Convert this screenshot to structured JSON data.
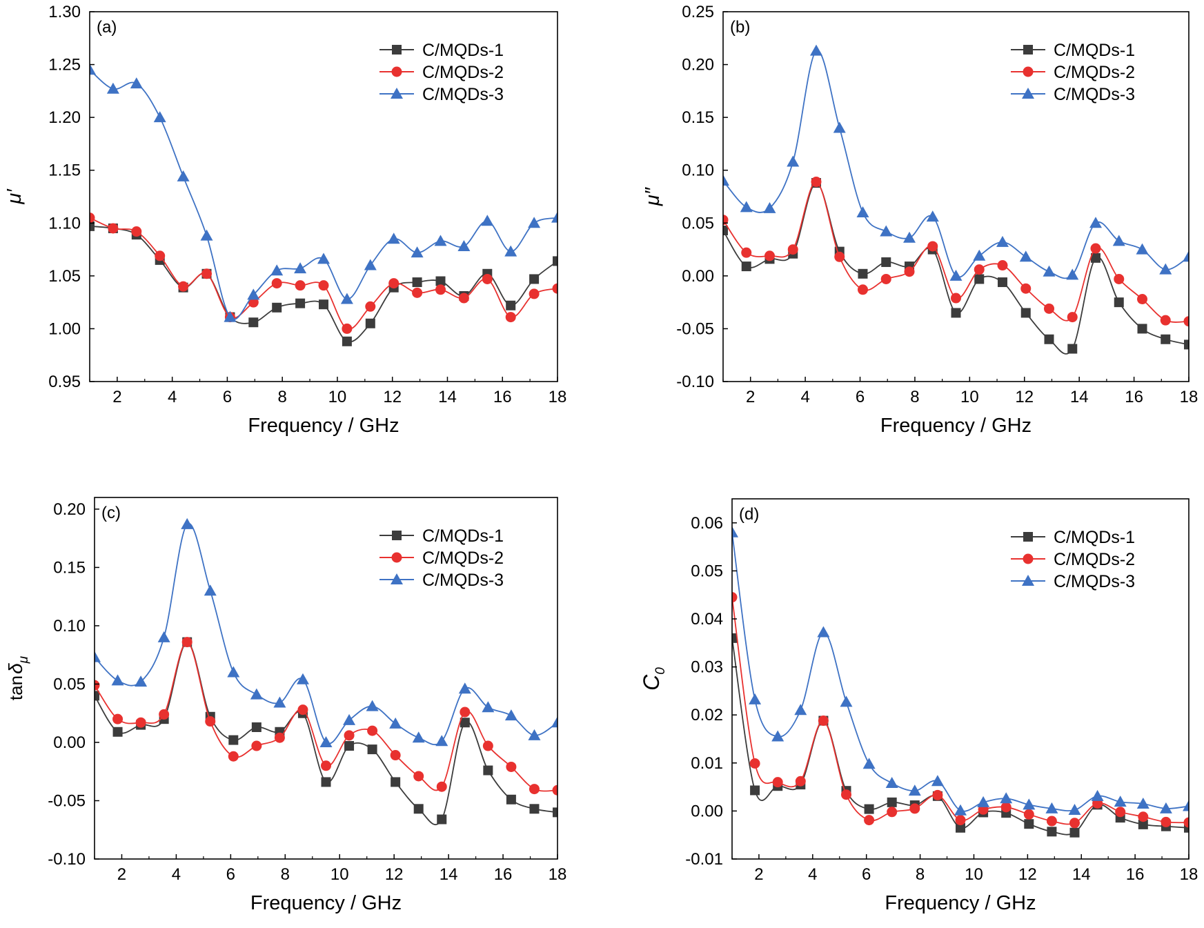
{
  "figure": {
    "legend_entries": [
      "C/MQDs-1",
      "C/MQDs-2",
      "C/MQDs-3"
    ],
    "series_colors": {
      "C/MQDs-1": "#3c3c3c",
      "C/MQDs-2": "#e8312f",
      "C/MQDs-3": "#3e72c4"
    },
    "marker_shapes": {
      "C/MQDs-1": "square",
      "C/MQDs-2": "circle",
      "C/MQDs-3": "triangle"
    }
  },
  "chart_data": [
    {
      "panel_label": "(a)",
      "type": "line",
      "xlabel": "Frequency / GHz",
      "ylabel": "μ′",
      "xlim": [
        1,
        18
      ],
      "ylim": [
        0.95,
        1.3
      ],
      "xticks": [
        "2",
        "4",
        "6",
        "8",
        "10",
        "12",
        "14",
        "16",
        "18"
      ],
      "yticks": [
        "0.95",
        "1.00",
        "1.05",
        "1.10",
        "1.15",
        "1.20",
        "1.25",
        "1.30"
      ],
      "legend_position": "top-right",
      "x": [
        1.0,
        1.85,
        2.7,
        3.55,
        4.4,
        5.25,
        6.1,
        6.95,
        7.8,
        8.65,
        9.5,
        10.35,
        11.2,
        12.05,
        12.9,
        13.75,
        14.6,
        15.45,
        16.3,
        17.15,
        18.0
      ],
      "series": [
        {
          "name": "C/MQDs-1",
          "values": [
            1.097,
            1.095,
            1.089,
            1.065,
            1.039,
            1.052,
            1.011,
            1.006,
            1.02,
            1.024,
            1.023,
            0.988,
            1.005,
            1.039,
            1.044,
            1.045,
            1.031,
            1.052,
            1.022,
            1.047,
            1.064
          ]
        },
        {
          "name": "C/MQDs-2",
          "values": [
            1.105,
            1.095,
            1.092,
            1.069,
            1.04,
            1.052,
            1.011,
            1.025,
            1.043,
            1.041,
            1.041,
            1.0,
            1.021,
            1.043,
            1.034,
            1.037,
            1.029,
            1.047,
            1.011,
            1.033,
            1.038
          ]
        },
        {
          "name": "C/MQDs-3",
          "values": [
            1.245,
            1.227,
            1.232,
            1.2,
            1.144,
            1.088,
            1.011,
            1.032,
            1.055,
            1.057,
            1.066,
            1.028,
            1.06,
            1.085,
            1.072,
            1.083,
            1.078,
            1.102,
            1.073,
            1.1,
            1.105
          ]
        }
      ]
    },
    {
      "panel_label": "(b)",
      "type": "line",
      "xlabel": "Frequency / GHz",
      "ylabel": "μ″",
      "xlim": [
        1,
        18
      ],
      "ylim": [
        -0.1,
        0.25
      ],
      "xticks": [
        "2",
        "4",
        "6",
        "8",
        "10",
        "12",
        "14",
        "16",
        "18"
      ],
      "yticks": [
        "-0.10",
        "-0.05",
        "0.00",
        "0.05",
        "0.10",
        "0.15",
        "0.20",
        "0.25"
      ],
      "legend_position": "top-right",
      "x": [
        1.0,
        1.85,
        2.7,
        3.55,
        4.4,
        5.25,
        6.1,
        6.95,
        7.8,
        8.65,
        9.5,
        10.35,
        11.2,
        12.05,
        12.9,
        13.75,
        14.6,
        15.45,
        16.3,
        17.15,
        18.0
      ],
      "series": [
        {
          "name": "C/MQDs-1",
          "values": [
            0.043,
            0.009,
            0.016,
            0.021,
            0.088,
            0.023,
            0.002,
            0.013,
            0.009,
            0.025,
            -0.035,
            -0.003,
            -0.006,
            -0.035,
            -0.06,
            -0.069,
            0.017,
            -0.025,
            -0.05,
            -0.06,
            -0.065
          ]
        },
        {
          "name": "C/MQDs-2",
          "values": [
            0.053,
            0.022,
            0.019,
            0.025,
            0.089,
            0.018,
            -0.013,
            -0.003,
            0.004,
            0.028,
            -0.021,
            0.006,
            0.01,
            -0.012,
            -0.031,
            -0.039,
            0.026,
            -0.003,
            -0.022,
            -0.042,
            -0.043
          ]
        },
        {
          "name": "C/MQDs-3",
          "values": [
            0.09,
            0.065,
            0.064,
            0.108,
            0.213,
            0.14,
            0.06,
            0.042,
            0.036,
            0.056,
            0.0,
            0.019,
            0.032,
            0.018,
            0.004,
            0.001,
            0.05,
            0.033,
            0.025,
            0.006,
            0.018
          ]
        }
      ]
    },
    {
      "panel_label": "(c)",
      "type": "line",
      "xlabel": "Frequency / GHz",
      "ylabel": "tanδμ",
      "ylabel_main": "tan",
      "ylabel_symbol": "δ",
      "ylabel_subscript": "μ",
      "xlim": [
        1,
        18
      ],
      "ylim": [
        -0.1,
        0.21
      ],
      "xticks": [
        "2",
        "4",
        "6",
        "8",
        "10",
        "12",
        "14",
        "16",
        "18"
      ],
      "yticks": [
        "-0.10",
        "-0.05",
        "0.00",
        "0.05",
        "0.10",
        "0.15",
        "0.20"
      ],
      "legend_position": "top-right",
      "x": [
        1.0,
        1.85,
        2.7,
        3.55,
        4.4,
        5.25,
        6.1,
        6.95,
        7.8,
        8.65,
        9.5,
        10.35,
        11.2,
        12.05,
        12.9,
        13.75,
        14.6,
        15.45,
        16.3,
        17.15,
        18.0
      ],
      "series": [
        {
          "name": "C/MQDs-1",
          "values": [
            0.04,
            0.009,
            0.015,
            0.02,
            0.086,
            0.022,
            0.002,
            0.013,
            0.009,
            0.025,
            -0.034,
            -0.003,
            -0.006,
            -0.034,
            -0.057,
            -0.066,
            0.017,
            -0.024,
            -0.049,
            -0.057,
            -0.06
          ]
        },
        {
          "name": "C/MQDs-2",
          "values": [
            0.049,
            0.02,
            0.017,
            0.024,
            0.086,
            0.018,
            -0.012,
            -0.003,
            0.004,
            0.028,
            -0.02,
            0.006,
            0.01,
            -0.011,
            -0.029,
            -0.038,
            0.026,
            -0.003,
            -0.021,
            -0.04,
            -0.041
          ]
        },
        {
          "name": "C/MQDs-3",
          "values": [
            0.073,
            0.053,
            0.052,
            0.09,
            0.187,
            0.13,
            0.06,
            0.041,
            0.034,
            0.054,
            0.0,
            0.019,
            0.031,
            0.016,
            0.004,
            0.001,
            0.046,
            0.03,
            0.023,
            0.006,
            0.017
          ]
        }
      ]
    },
    {
      "panel_label": "(d)",
      "type": "line",
      "xlabel": "Frequency / GHz",
      "ylabel": "C0",
      "ylabel_main": "C",
      "ylabel_subscript": "0",
      "xlim": [
        1,
        18
      ],
      "ylim": [
        -0.01,
        0.065
      ],
      "xticks": [
        "2",
        "4",
        "6",
        "8",
        "10",
        "12",
        "14",
        "16",
        "18"
      ],
      "yticks": [
        "-0.01",
        "0.00",
        "0.01",
        "0.02",
        "0.03",
        "0.04",
        "0.05",
        "0.06"
      ],
      "legend_position": "top-right",
      "x": [
        1.0,
        1.85,
        2.7,
        3.55,
        4.4,
        5.25,
        6.1,
        6.95,
        7.8,
        8.65,
        9.5,
        10.35,
        11.2,
        12.05,
        12.9,
        13.75,
        14.6,
        15.45,
        16.3,
        17.15,
        18.0
      ],
      "series": [
        {
          "name": "C/MQDs-1",
          "values": [
            0.036,
            0.0043,
            0.0052,
            0.0055,
            0.0188,
            0.0042,
            0.0004,
            0.0018,
            0.0012,
            0.0031,
            -0.0035,
            -0.0003,
            -0.0004,
            -0.0027,
            -0.0043,
            -0.0045,
            0.0013,
            -0.0014,
            -0.0028,
            -0.0032,
            -0.0035
          ]
        },
        {
          "name": "C/MQDs-2",
          "values": [
            0.0445,
            0.0099,
            0.006,
            0.0062,
            0.0188,
            0.0034,
            -0.0019,
            -0.0002,
            0.0005,
            0.0033,
            -0.0019,
            0.0003,
            0.0008,
            -0.0007,
            -0.0021,
            -0.0025,
            0.0016,
            -0.0002,
            -0.0012,
            -0.0023,
            -0.0024
          ]
        },
        {
          "name": "C/MQDs-3",
          "values": [
            0.058,
            0.0232,
            0.0155,
            0.021,
            0.0372,
            0.0227,
            0.0098,
            0.0058,
            0.0042,
            0.0062,
            0.0001,
            0.0018,
            0.0026,
            0.0013,
            0.0005,
            0.0002,
            0.0031,
            0.0019,
            0.0015,
            0.0005,
            0.001
          ]
        }
      ]
    }
  ]
}
